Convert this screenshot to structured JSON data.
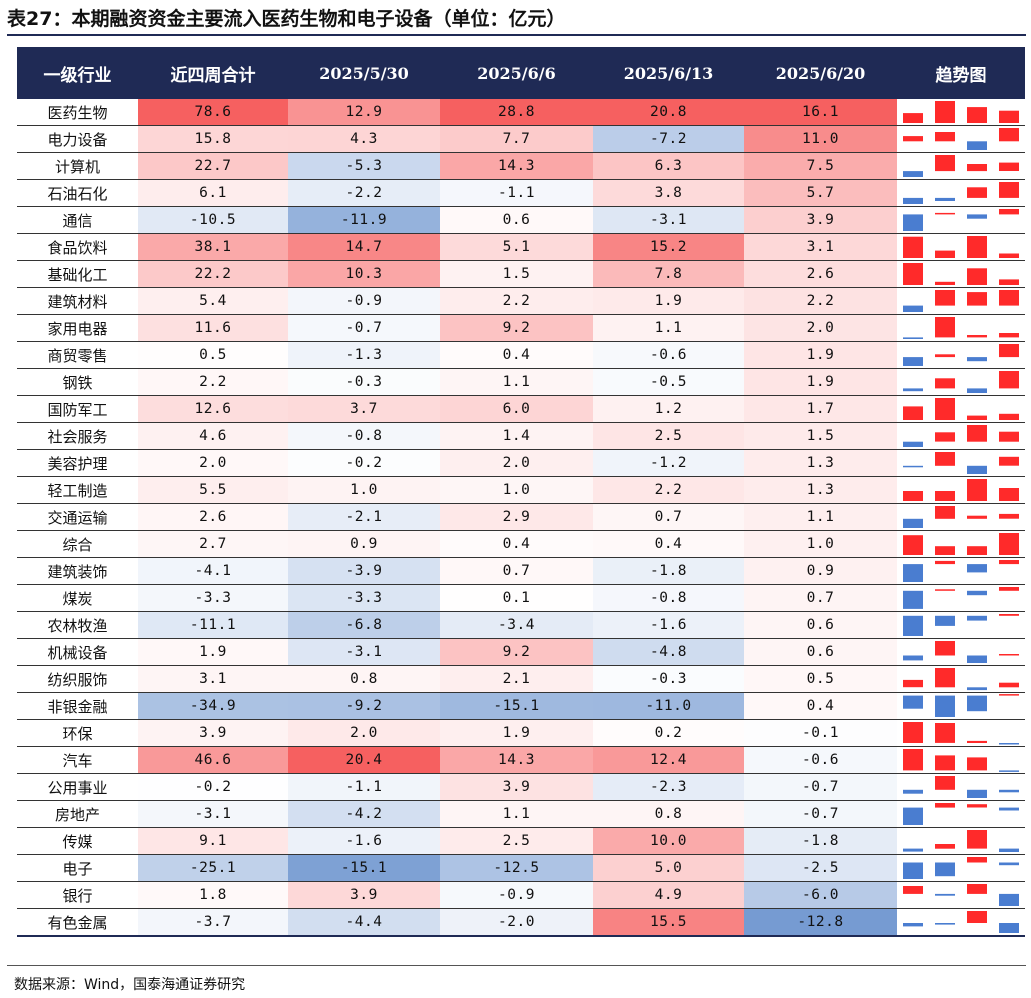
{
  "title": "表27：本期融资资金主要流入医药生物和电子设备（单位：亿元）",
  "source": "数据来源：Wind，国泰海通证券研究",
  "colors": {
    "header_bg": "#1f2a55",
    "positive": "#ff2a2a",
    "negative": "#4a7dd0"
  },
  "table": {
    "headers": [
      "一级行业",
      "近四周合计",
      "2025/5/30",
      "2025/6/6",
      "2025/6/13",
      "2025/6/20",
      "趋势图"
    ],
    "rows": [
      {
        "industry": "医药生物",
        "total": "78.6",
        "w1": "12.9",
        "w2": "28.8",
        "w3": "20.8",
        "w4": "16.1"
      },
      {
        "industry": "电力设备",
        "total": "15.8",
        "w1": "4.3",
        "w2": "7.7",
        "w3": "-7.2",
        "w4": "11.0"
      },
      {
        "industry": "计算机",
        "total": "22.7",
        "w1": "-5.3",
        "w2": "14.3",
        "w3": "6.3",
        "w4": "7.5"
      },
      {
        "industry": "石油石化",
        "total": "6.1",
        "w1": "-2.2",
        "w2": "-1.1",
        "w3": "3.8",
        "w4": "5.7"
      },
      {
        "industry": "通信",
        "total": "-10.5",
        "w1": "-11.9",
        "w2": "0.6",
        "w3": "-3.1",
        "w4": "3.9"
      },
      {
        "industry": "食品饮料",
        "total": "38.1",
        "w1": "14.7",
        "w2": "5.1",
        "w3": "15.2",
        "w4": "3.1"
      },
      {
        "industry": "基础化工",
        "total": "22.2",
        "w1": "10.3",
        "w2": "1.5",
        "w3": "7.8",
        "w4": "2.6"
      },
      {
        "industry": "建筑材料",
        "total": "5.4",
        "w1": "-0.9",
        "w2": "2.2",
        "w3": "1.9",
        "w4": "2.2"
      },
      {
        "industry": "家用电器",
        "total": "11.6",
        "w1": "-0.7",
        "w2": "9.2",
        "w3": "1.1",
        "w4": "2.0"
      },
      {
        "industry": "商贸零售",
        "total": "0.5",
        "w1": "-1.3",
        "w2": "0.4",
        "w3": "-0.6",
        "w4": "1.9"
      },
      {
        "industry": "钢铁",
        "total": "2.2",
        "w1": "-0.3",
        "w2": "1.1",
        "w3": "-0.5",
        "w4": "1.9"
      },
      {
        "industry": "国防军工",
        "total": "12.6",
        "w1": "3.7",
        "w2": "6.0",
        "w3": "1.2",
        "w4": "1.7"
      },
      {
        "industry": "社会服务",
        "total": "4.6",
        "w1": "-0.8",
        "w2": "1.4",
        "w3": "2.5",
        "w4": "1.5"
      },
      {
        "industry": "美容护理",
        "total": "2.0",
        "w1": "-0.2",
        "w2": "2.0",
        "w3": "-1.2",
        "w4": "1.3"
      },
      {
        "industry": "轻工制造",
        "total": "5.5",
        "w1": "1.0",
        "w2": "1.0",
        "w3": "2.2",
        "w4": "1.3"
      },
      {
        "industry": "交通运输",
        "total": "2.6",
        "w1": "-2.1",
        "w2": "2.9",
        "w3": "0.7",
        "w4": "1.1"
      },
      {
        "industry": "综合",
        "total": "2.7",
        "w1": "0.9",
        "w2": "0.4",
        "w3": "0.4",
        "w4": "1.0"
      },
      {
        "industry": "建筑装饰",
        "total": "-4.1",
        "w1": "-3.9",
        "w2": "0.7",
        "w3": "-1.8",
        "w4": "0.9"
      },
      {
        "industry": "煤炭",
        "total": "-3.3",
        "w1": "-3.3",
        "w2": "0.1",
        "w3": "-0.8",
        "w4": "0.7"
      },
      {
        "industry": "农林牧渔",
        "total": "-11.1",
        "w1": "-6.8",
        "w2": "-3.4",
        "w3": "-1.6",
        "w4": "0.6"
      },
      {
        "industry": "机械设备",
        "total": "1.9",
        "w1": "-3.1",
        "w2": "9.2",
        "w3": "-4.8",
        "w4": "0.6"
      },
      {
        "industry": "纺织服饰",
        "total": "3.1",
        "w1": "0.8",
        "w2": "2.1",
        "w3": "-0.3",
        "w4": "0.5"
      },
      {
        "industry": "非银金融",
        "total": "-34.9",
        "w1": "-9.2",
        "w2": "-15.1",
        "w3": "-11.0",
        "w4": "0.4"
      },
      {
        "industry": "环保",
        "total": "3.9",
        "w1": "2.0",
        "w2": "1.9",
        "w3": "0.2",
        "w4": "-0.1"
      },
      {
        "industry": "汽车",
        "total": "46.6",
        "w1": "20.4",
        "w2": "14.3",
        "w3": "12.4",
        "w4": "-0.6"
      },
      {
        "industry": "公用事业",
        "total": "-0.2",
        "w1": "-1.1",
        "w2": "3.9",
        "w3": "-2.3",
        "w4": "-0.7"
      },
      {
        "industry": "房地产",
        "total": "-3.1",
        "w1": "-4.2",
        "w2": "1.1",
        "w3": "0.8",
        "w4": "-0.7"
      },
      {
        "industry": "传媒",
        "total": "9.1",
        "w1": "-1.6",
        "w2": "2.5",
        "w3": "10.0",
        "w4": "-1.8"
      },
      {
        "industry": "电子",
        "total": "-25.1",
        "w1": "-15.1",
        "w2": "-12.5",
        "w3": "5.0",
        "w4": "-2.5"
      },
      {
        "industry": "银行",
        "total": "1.8",
        "w1": "3.9",
        "w2": "-0.9",
        "w3": "4.9",
        "w4": "-6.0"
      },
      {
        "industry": "有色金属",
        "total": "-3.7",
        "w1": "-4.4",
        "w2": "-2.0",
        "w3": "15.5",
        "w4": "-12.8"
      }
    ]
  }
}
